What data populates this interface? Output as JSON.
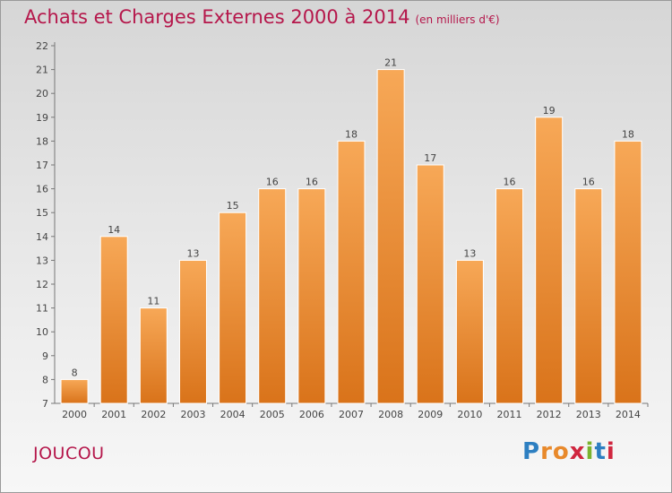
{
  "header": {
    "title": "Achats et Charges Externes 2000 à 2014",
    "subtitle": "(en milliers d'€)"
  },
  "footer": {
    "city": "JOUCOU",
    "brand": "Proxiti"
  },
  "colors": {
    "bar_light": "#f7a857",
    "bar_dark": "#d9731a",
    "title": "#b5174b"
  },
  "chart_data": {
    "type": "bar",
    "title": "Achats et Charges Externes 2000 à 2014",
    "subtitle": "(en milliers d'€)",
    "categories": [
      "2000",
      "2001",
      "2002",
      "2003",
      "2004",
      "2005",
      "2006",
      "2007",
      "2008",
      "2009",
      "2010",
      "2011",
      "2012",
      "2013",
      "2014"
    ],
    "values": [
      8,
      14,
      11,
      13,
      15,
      16,
      16,
      18,
      21,
      17,
      13,
      16,
      19,
      16,
      18
    ],
    "ylim": [
      7,
      22
    ],
    "yticks": [
      7,
      8,
      9,
      10,
      11,
      12,
      13,
      14,
      15,
      16,
      17,
      18,
      19,
      20,
      21,
      22
    ],
    "grid": false,
    "legend": "none"
  }
}
